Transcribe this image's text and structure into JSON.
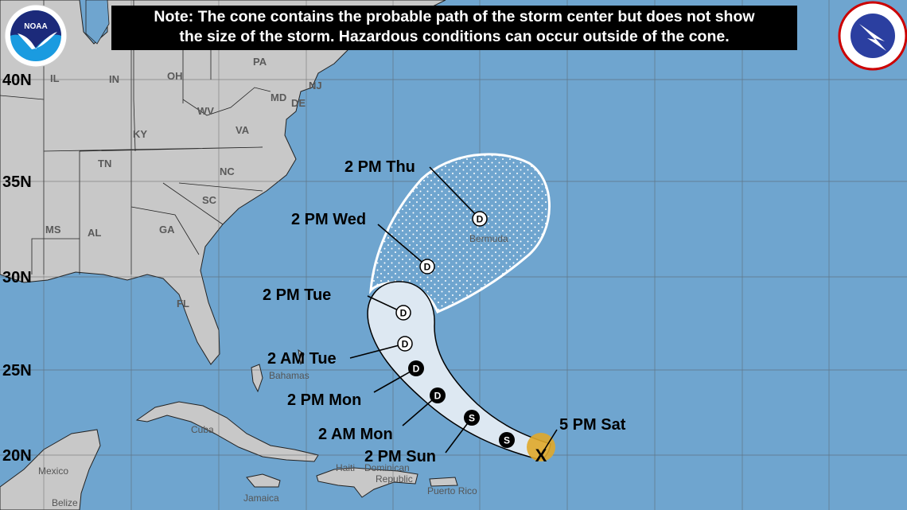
{
  "note": {
    "line1": "Note: The cone contains the probable path of the storm center but does not show",
    "line2": "the size of the storm. Hazardous conditions can occur outside of the cone."
  },
  "logos": {
    "left": "NOAA",
    "right": "NATIONAL WEATHER SERVICE"
  },
  "latitudes": [
    "40N",
    "35N",
    "30N",
    "25N",
    "20N"
  ],
  "states": [
    "IL",
    "IN",
    "OH",
    "PA",
    "WV",
    "VA",
    "KY",
    "TN",
    "NC",
    "SC",
    "GA",
    "AL",
    "MS",
    "FL",
    "MD",
    "DE",
    "NJ"
  ],
  "places": {
    "bermuda": "Bermuda",
    "bahamas": "Bahamas",
    "cuba": "Cuba",
    "mexico": "Mexico",
    "belize": "Belize",
    "jamaica": "Jamaica",
    "haiti": "Haiti",
    "dominican": "Dominican",
    "republic": "Republic",
    "puerto_rico": "Puerto Rico"
  },
  "forecast_points": [
    {
      "label": "5 PM Sat",
      "type": "X"
    },
    {
      "label": "2 PM Sun",
      "type": "S"
    },
    {
      "label": "2 AM Mon",
      "type": "D"
    },
    {
      "label": "2 PM Mon",
      "type": "D"
    },
    {
      "label": "2 AM Tue",
      "type": "D"
    },
    {
      "label": "2 PM Tue",
      "type": "D"
    },
    {
      "label": "2 PM Wed",
      "type": "D"
    },
    {
      "label": "2 PM Thu",
      "type": "D"
    }
  ],
  "extra_point": "S",
  "colors": {
    "ocean": "#6fa5cf",
    "land": "#c8c8c8",
    "cone": "#dde8f2",
    "current_position": "#e0a92a"
  }
}
